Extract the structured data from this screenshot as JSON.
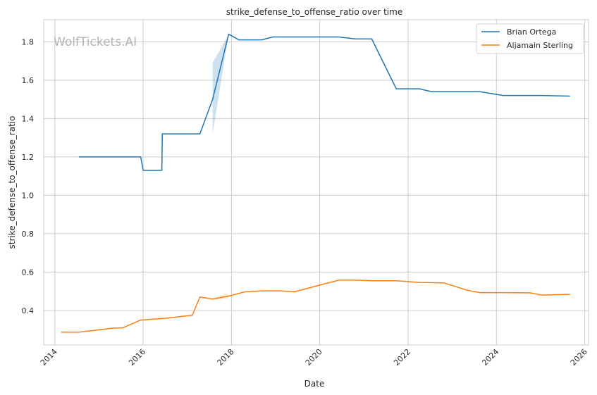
{
  "chart_data": {
    "type": "line",
    "title": "strike_defense_to_offense_ratio over time",
    "xlabel": "Date",
    "ylabel": "strike_defense_to_offense_ratio",
    "watermark": "WolfTickets.AI",
    "xlim": [
      "2013-10-01",
      "2026-02-01"
    ],
    "ylim": [
      0.22,
      1.915
    ],
    "x_ticks": [
      "2014",
      "2016",
      "2018",
      "2020",
      "2022",
      "2024",
      "2026"
    ],
    "y_ticks": [
      "0.4",
      "0.6",
      "0.8",
      "1.0",
      "1.2",
      "1.4",
      "1.6",
      "1.8"
    ],
    "grid": true,
    "legend_position": "top-right",
    "series": [
      {
        "name": "Brian Ortega",
        "color": "#1f77b4",
        "points": [
          [
            "2014-07-19",
            1.2
          ],
          [
            "2015-12-12",
            1.2
          ],
          [
            "2016-01-02",
            1.13
          ],
          [
            "2016-06-04",
            1.13
          ],
          [
            "2016-06-08",
            1.32
          ],
          [
            "2017-04-15",
            1.32
          ],
          [
            "2017-07-29",
            1.5
          ],
          [
            "2017-12-09",
            1.84
          ],
          [
            "2018-03-03",
            1.81
          ],
          [
            "2018-09-08",
            1.81
          ],
          [
            "2018-12-08",
            1.825
          ],
          [
            "2020-06-06",
            1.825
          ],
          [
            "2020-10-17",
            1.815
          ],
          [
            "2021-03-06",
            1.815
          ],
          [
            "2021-09-25",
            1.555
          ],
          [
            "2022-04-02",
            1.555
          ],
          [
            "2022-07-16",
            1.54
          ],
          [
            "2023-08-19",
            1.54
          ],
          [
            "2024-02-24",
            1.52
          ],
          [
            "2025-01-11",
            1.52
          ],
          [
            "2025-09-01",
            1.517
          ]
        ],
        "band": [
          [
            "2017-07-29",
            1.32,
            1.69
          ],
          [
            "2017-12-09",
            1.84,
            1.84
          ]
        ]
      },
      {
        "name": "Aljamain Sterling",
        "color": "#ff7f0e",
        "points": [
          [
            "2014-02-22",
            0.287
          ],
          [
            "2014-07-19",
            0.287
          ],
          [
            "2015-04-18",
            0.307
          ],
          [
            "2015-07-18",
            0.31
          ],
          [
            "2015-12-12",
            0.35
          ],
          [
            "2016-07-13",
            0.36
          ],
          [
            "2017-02-11",
            0.375
          ],
          [
            "2017-04-15",
            0.47
          ],
          [
            "2017-07-29",
            0.46
          ],
          [
            "2017-12-09",
            0.475
          ],
          [
            "2018-04-21",
            0.497
          ],
          [
            "2018-09-08",
            0.502
          ],
          [
            "2019-02-16",
            0.502
          ],
          [
            "2019-06-08",
            0.498
          ],
          [
            "2020-06-06",
            0.558
          ],
          [
            "2020-10-17",
            0.558
          ],
          [
            "2021-03-06",
            0.555
          ],
          [
            "2021-09-25",
            0.555
          ],
          [
            "2022-04-02",
            0.546
          ],
          [
            "2022-10-22",
            0.544
          ],
          [
            "2023-05-06",
            0.505
          ],
          [
            "2023-08-19",
            0.493
          ],
          [
            "2024-02-24",
            0.493
          ],
          [
            "2024-10-05",
            0.492
          ],
          [
            "2025-01-11",
            0.48
          ],
          [
            "2025-09-01",
            0.484
          ]
        ],
        "band": [
          [
            "2017-07-29",
            0.455,
            0.465
          ],
          [
            "2017-12-09",
            0.465,
            0.487
          ]
        ]
      }
    ]
  }
}
